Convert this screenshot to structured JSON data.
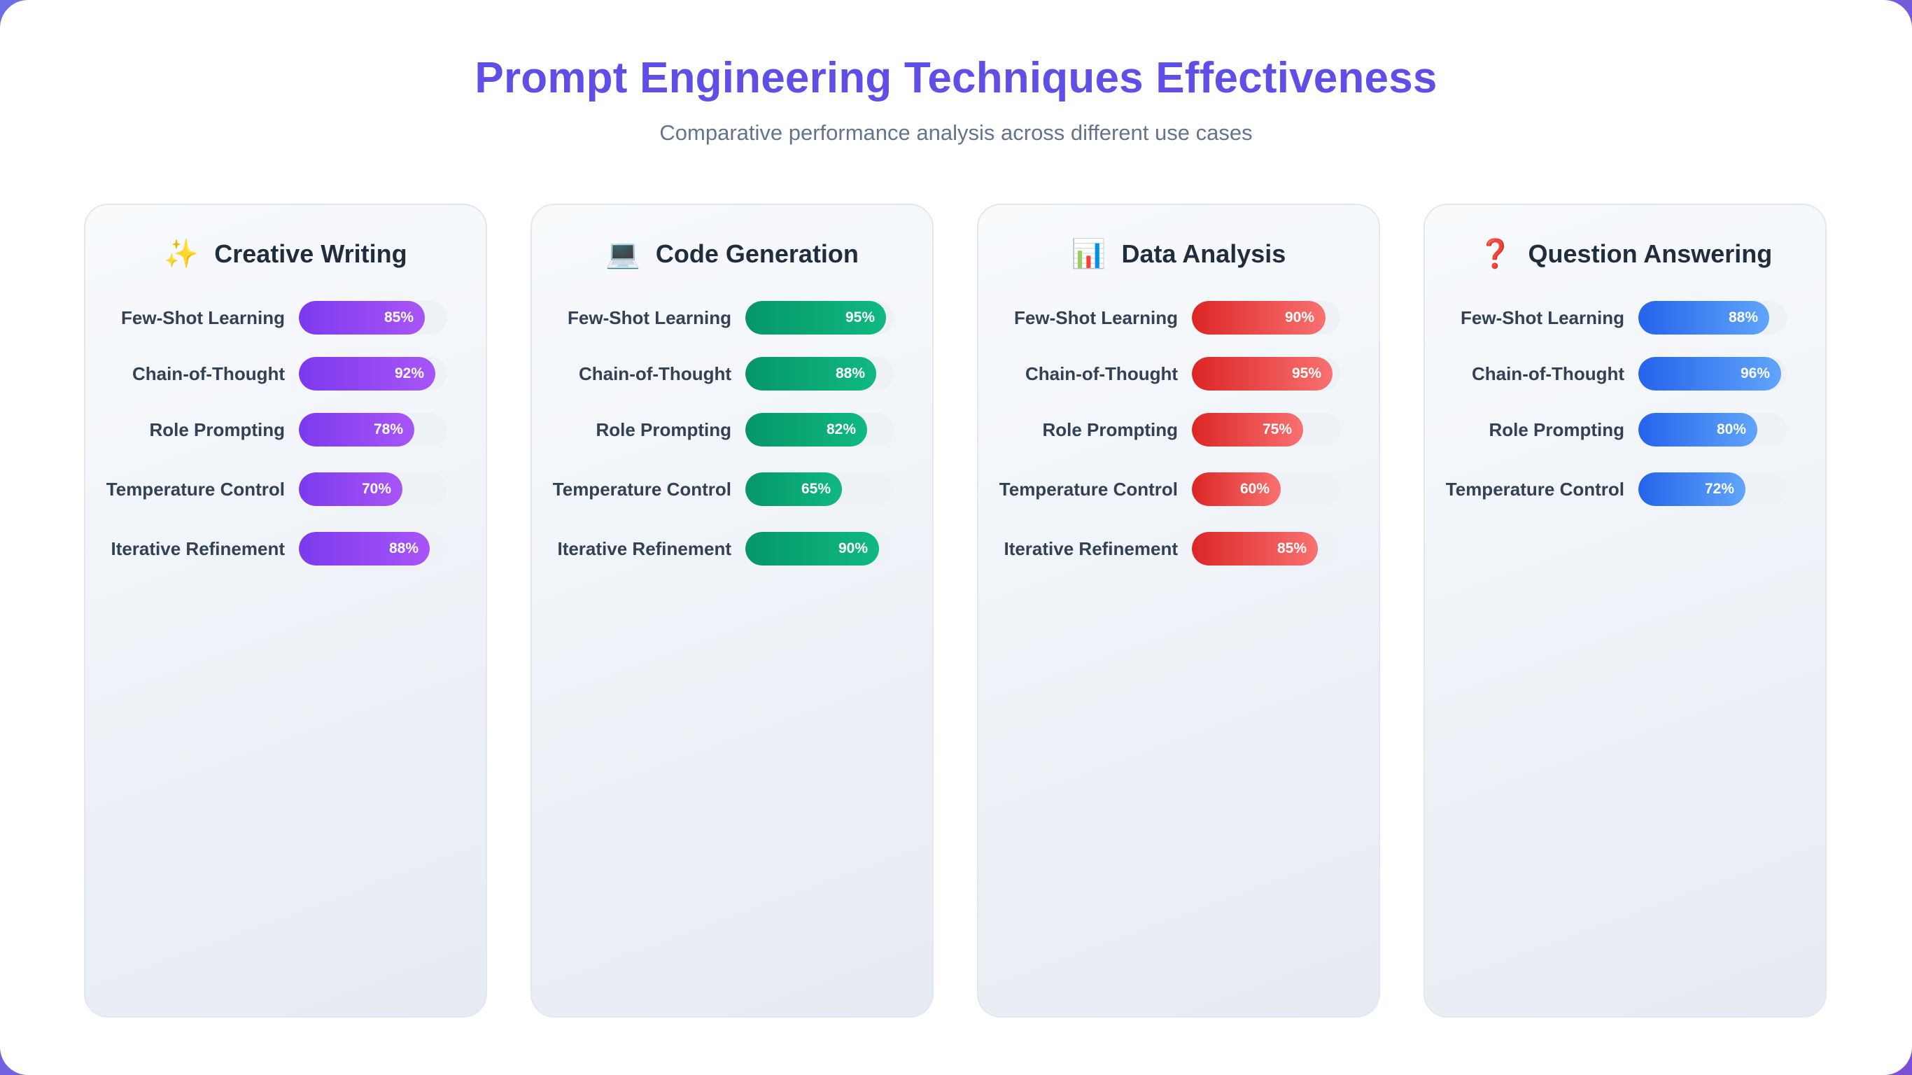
{
  "title": "Prompt Engineering Techniques Effectiveness",
  "subtitle": "Comparative performance analysis across different use cases",
  "colors": {
    "title": "#5f4fe6",
    "Creative Writing": "#8b3cf0",
    "Code Generation": "#059669",
    "Data Analysis": "#dc2626",
    "Question Answering": "#2563eb"
  },
  "chart_data": [
    {
      "type": "bar",
      "title": "Creative Writing",
      "icon": "sparkles-icon",
      "icon_glyph": "✨",
      "color": "purple",
      "categories": [
        "Few-Shot Learning",
        "Chain-of-Thought",
        "Role Prompting",
        "Temperature Control",
        "Iterative Refinement"
      ],
      "values": [
        85,
        92,
        78,
        70,
        88
      ],
      "labels": [
        "85%",
        "92%",
        "78%",
        "70%",
        "88%"
      ],
      "ylim": [
        0,
        100
      ]
    },
    {
      "type": "bar",
      "title": "Code Generation",
      "icon": "laptop-icon",
      "icon_glyph": "💻",
      "color": "green",
      "categories": [
        "Few-Shot Learning",
        "Chain-of-Thought",
        "Role Prompting",
        "Temperature Control",
        "Iterative Refinement"
      ],
      "values": [
        95,
        88,
        82,
        65,
        90
      ],
      "labels": [
        "95%",
        "88%",
        "82%",
        "65%",
        "90%"
      ],
      "ylim": [
        0,
        100
      ]
    },
    {
      "type": "bar",
      "title": "Data Analysis",
      "icon": "bar-chart-icon",
      "icon_glyph": "📊",
      "color": "red",
      "categories": [
        "Few-Shot Learning",
        "Chain-of-Thought",
        "Role Prompting",
        "Temperature Control",
        "Iterative Refinement"
      ],
      "values": [
        90,
        95,
        75,
        60,
        85
      ],
      "labels": [
        "90%",
        "95%",
        "75%",
        "60%",
        "85%"
      ],
      "ylim": [
        0,
        100
      ]
    },
    {
      "type": "bar",
      "title": "Question Answering",
      "icon": "question-mark-icon",
      "icon_glyph": "❓",
      "color": "blue",
      "categories": [
        "Few-Shot Learning",
        "Chain-of-Thought",
        "Role Prompting",
        "Temperature Control"
      ],
      "values": [
        88,
        96,
        80,
        72
      ],
      "labels": [
        "88%",
        "96%",
        "80%",
        "72%"
      ],
      "ylim": [
        0,
        100
      ]
    }
  ]
}
